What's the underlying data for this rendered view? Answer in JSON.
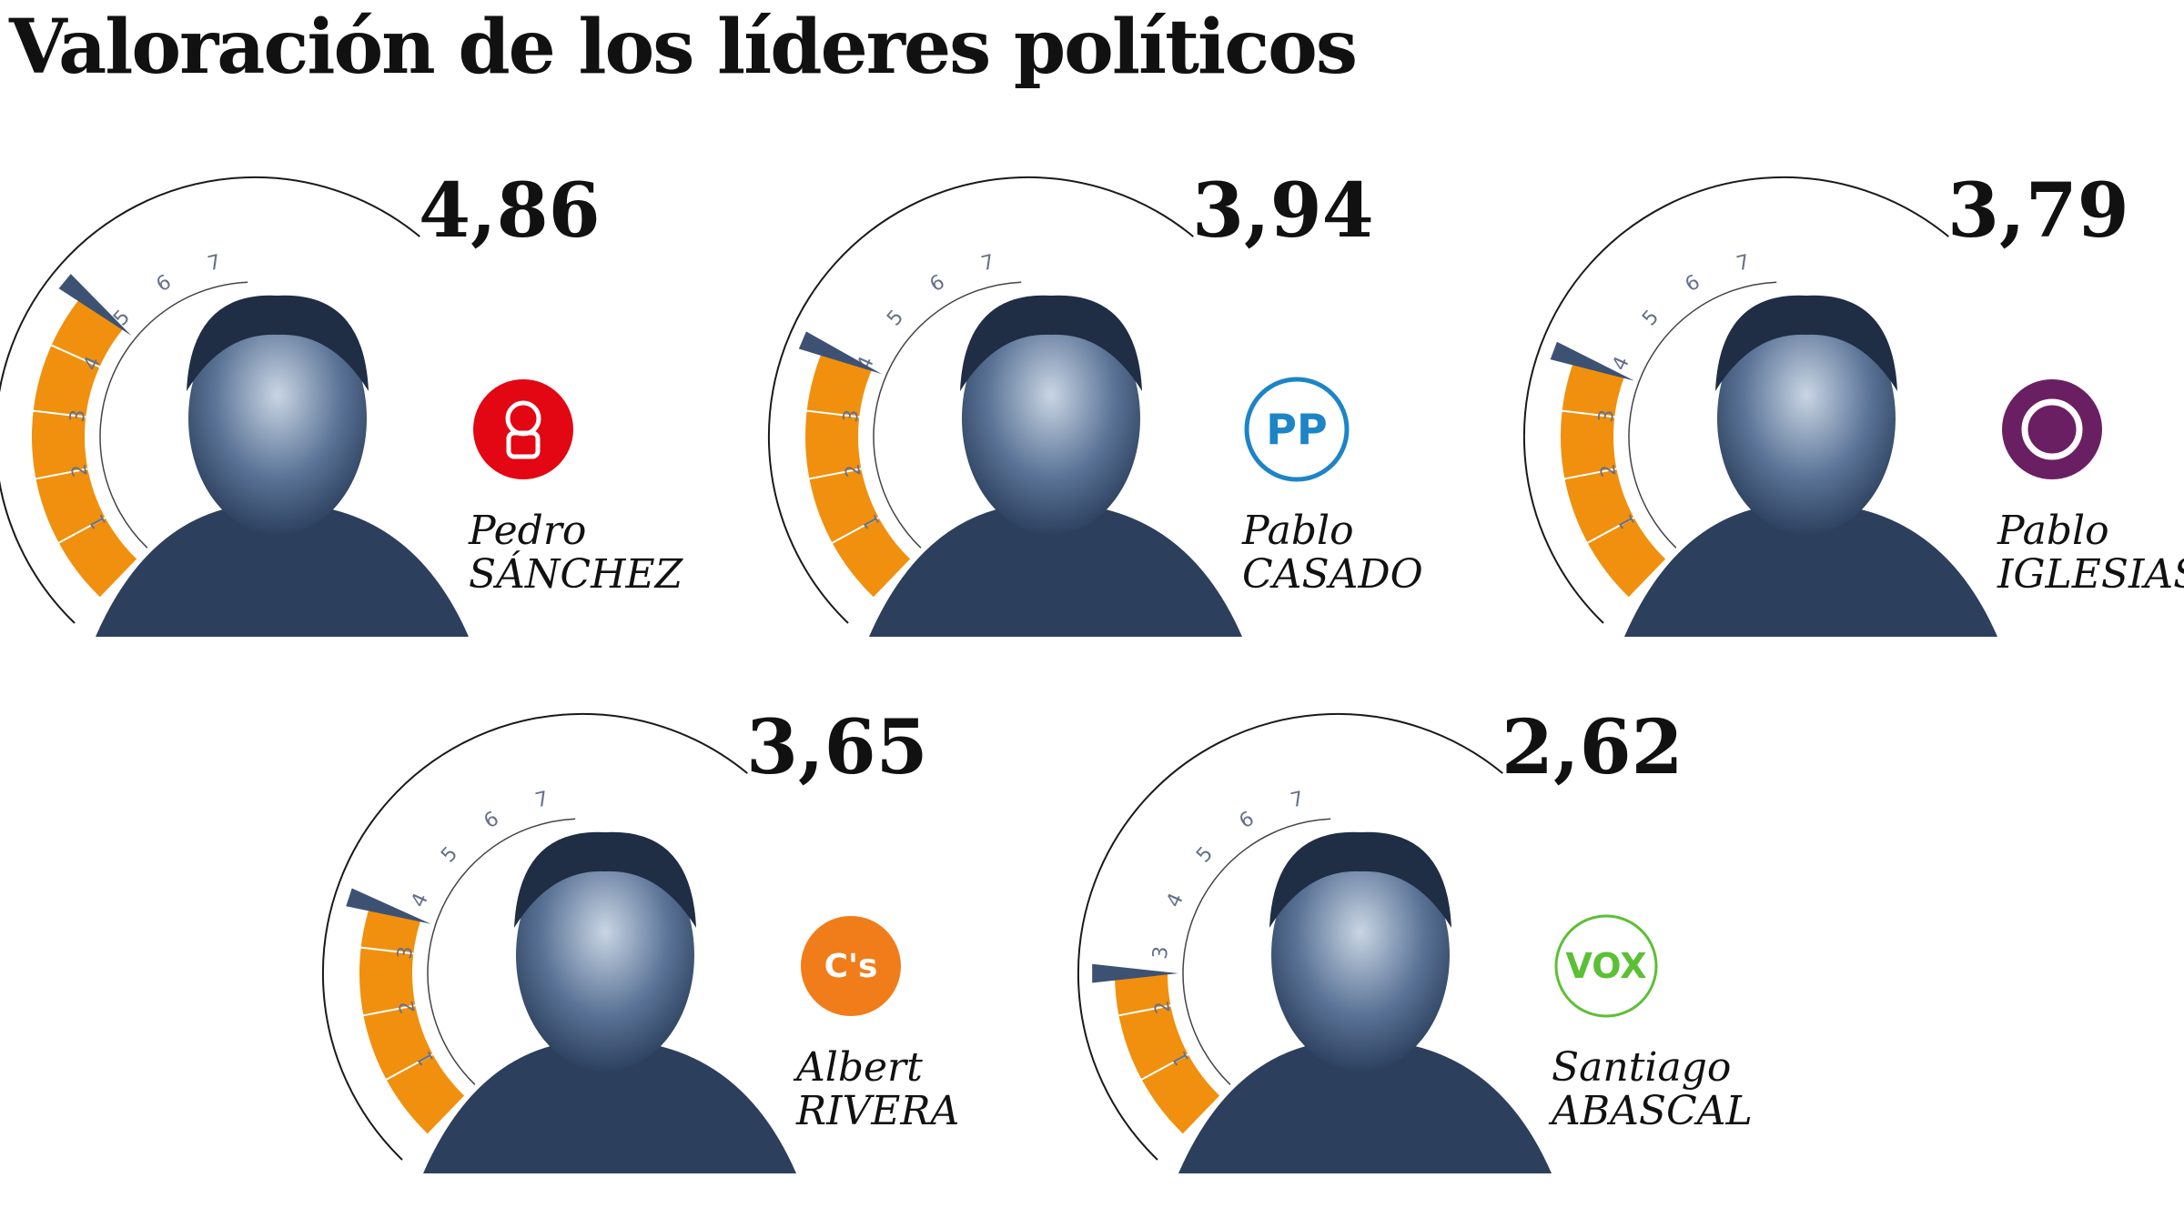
{
  "page": {
    "title": "Valoración de los líderes políticos"
  },
  "chart_data": {
    "type": "gauge",
    "title": "Valoración de los líderes políticos",
    "scale_min": 0,
    "scale_max": 10,
    "tick_labels": [
      "1",
      "2",
      "3",
      "4",
      "5",
      "6",
      "7"
    ],
    "leaders": [
      {
        "first_name": "Pedro",
        "last_name": "SÁNCHEZ",
        "score": 4.86,
        "score_label": "4,86",
        "party": "PSOE",
        "logo_color": "#e30613",
        "logo_icon": "rose-fist-icon"
      },
      {
        "first_name": "Pablo",
        "last_name": "CASADO",
        "score": 3.94,
        "score_label": "3,94",
        "party": "PP",
        "logo_color": "#1d84c6",
        "logo_icon": "pp-logo-icon",
        "logo_text": "PP"
      },
      {
        "first_name": "Pablo",
        "last_name": "IGLESIAS",
        "score": 3.79,
        "score_label": "3,79",
        "party": "Podemos",
        "logo_color": "#6b1f63",
        "logo_icon": "podemos-circle-icon"
      },
      {
        "first_name": "Albert",
        "last_name": "RIVERA",
        "score": 3.65,
        "score_label": "3,65",
        "party": "Cs",
        "logo_color": "#f07d19",
        "logo_icon": "cs-logo-icon",
        "logo_text": "C's"
      },
      {
        "first_name": "Santiago",
        "last_name": "ABASCAL",
        "score": 2.62,
        "score_label": "2,62",
        "party": "Vox",
        "logo_color": "#5bc035",
        "logo_icon": "vox-logo-icon",
        "logo_text": "VOX"
      }
    ],
    "colors": {
      "fill": "#f0900e",
      "needle": "#3d5273",
      "arc": "#1a1a1a",
      "photo": "#5a7396"
    }
  }
}
